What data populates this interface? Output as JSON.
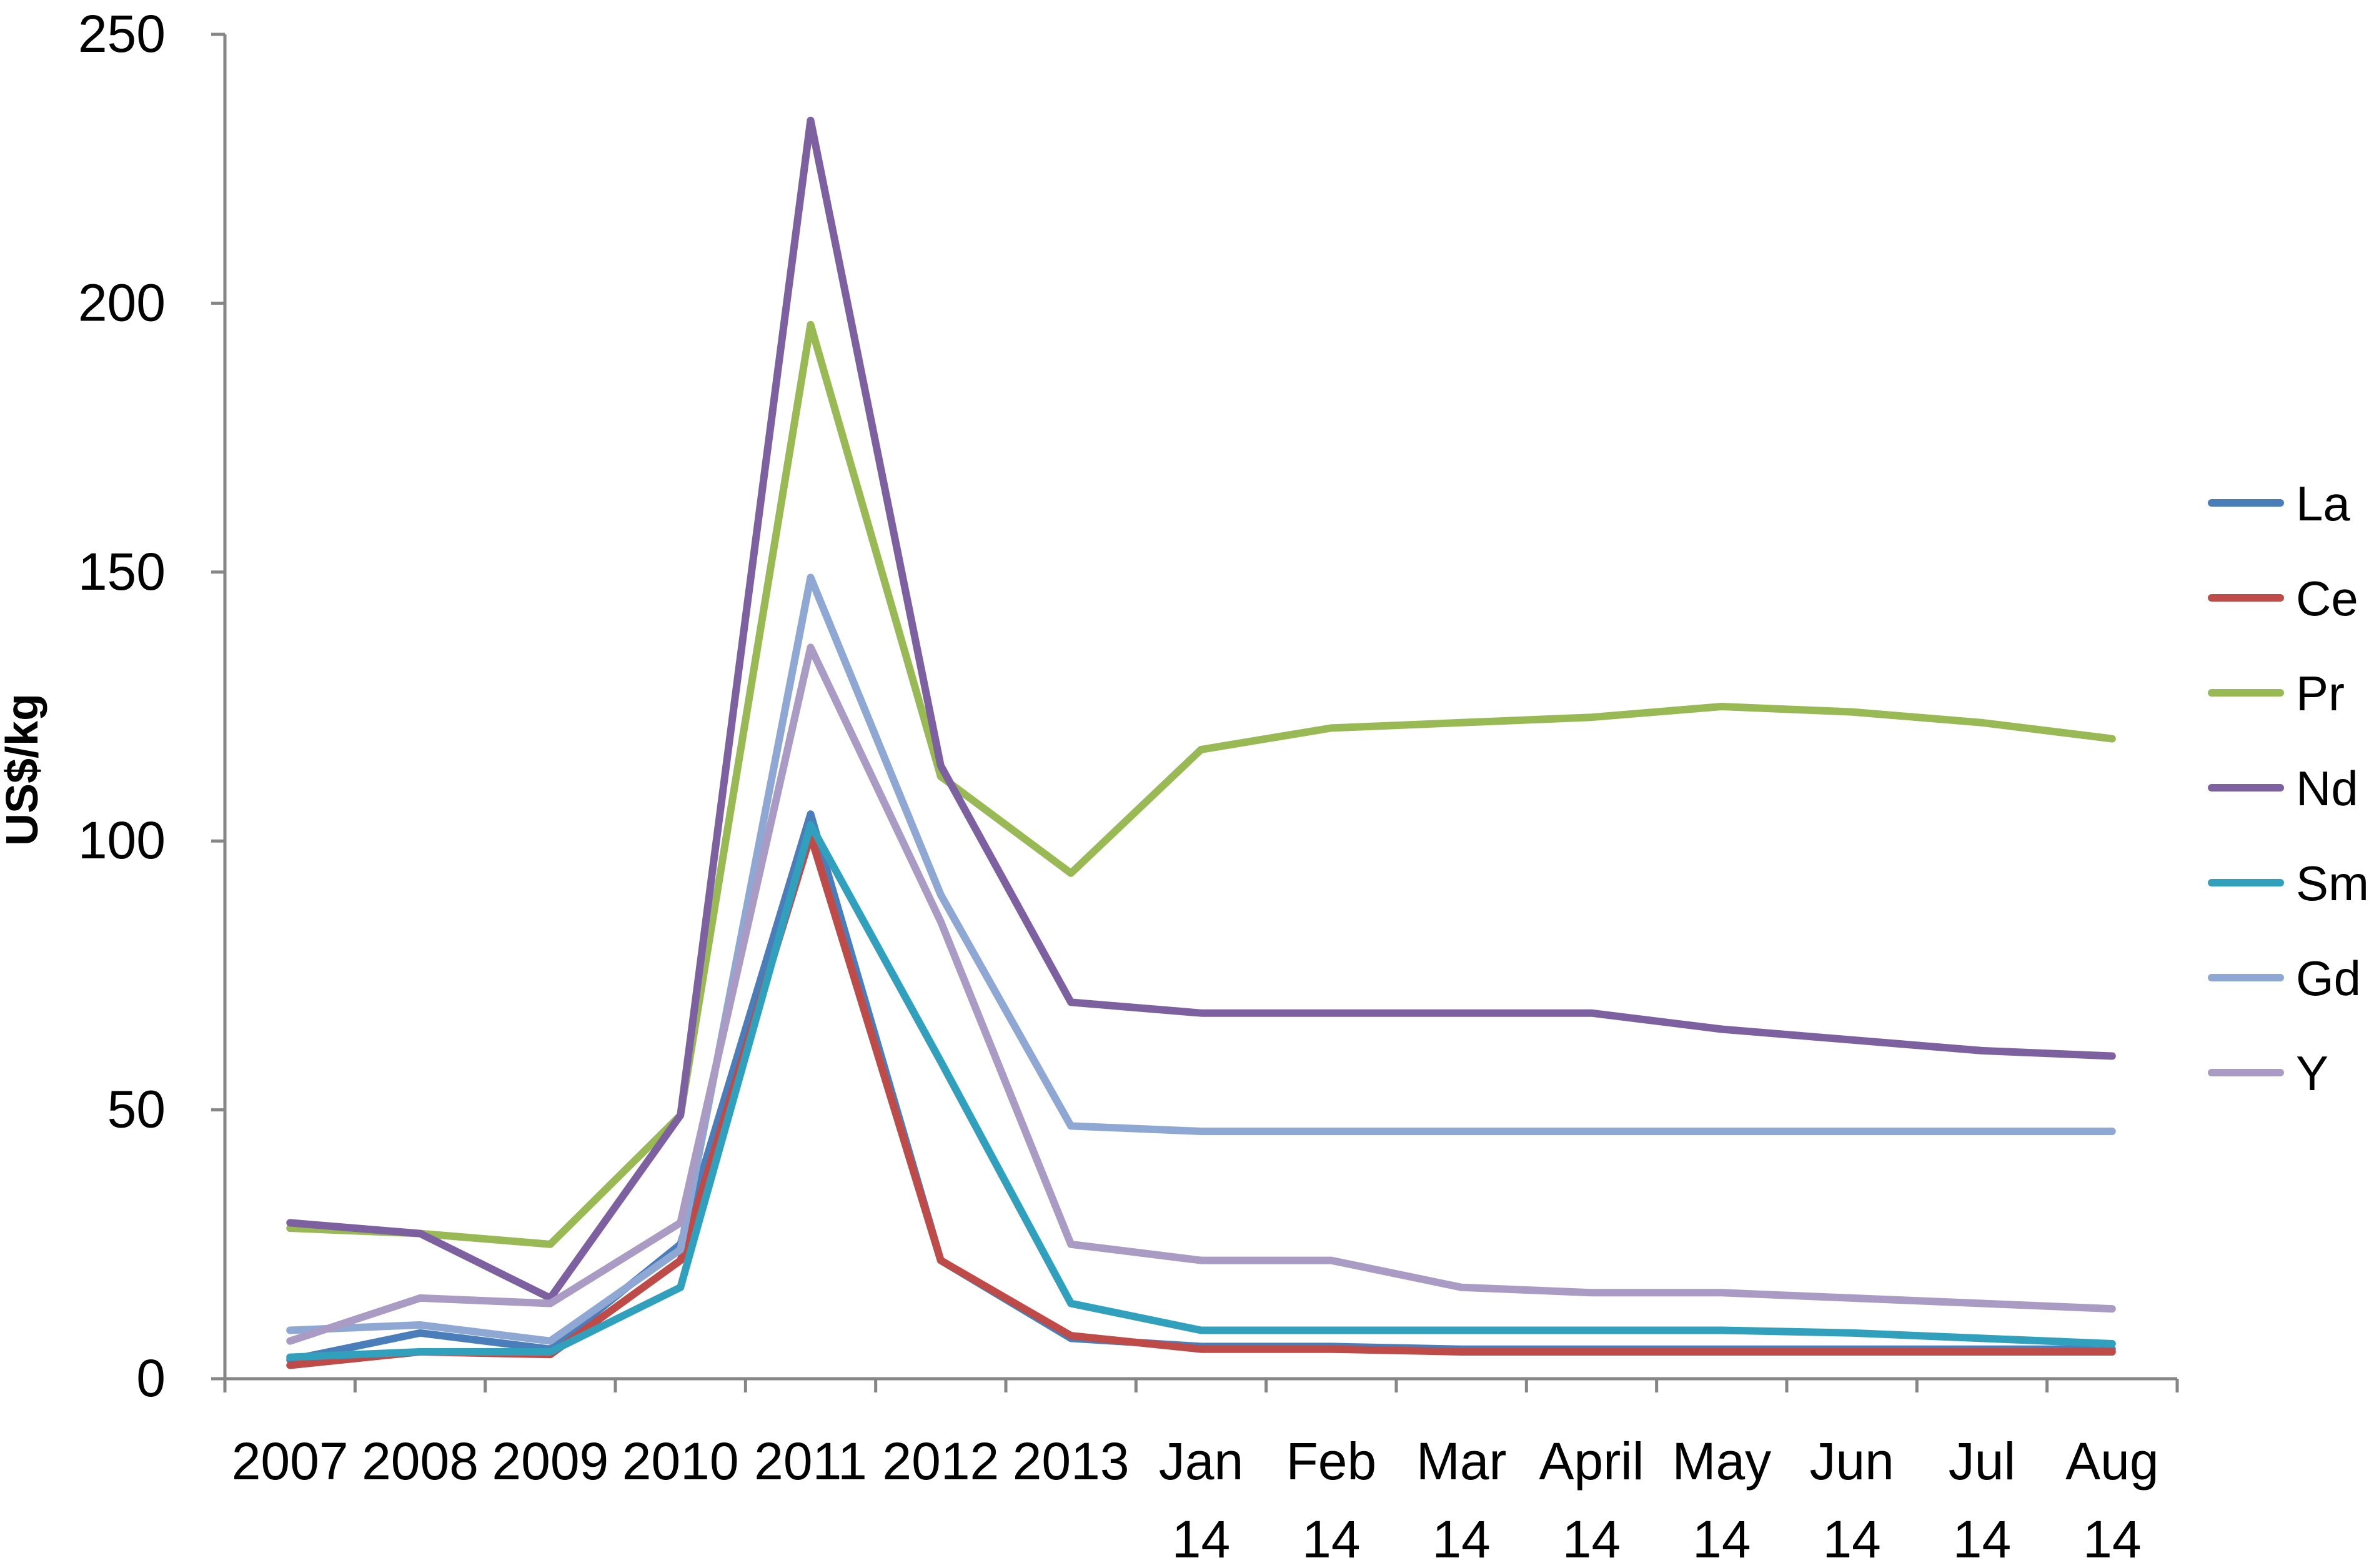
{
  "chart_data": {
    "type": "line",
    "title": "",
    "xlabel": "",
    "ylabel": "US$/kg",
    "ylim": [
      0,
      250
    ],
    "yticks": [
      0,
      50,
      100,
      150,
      200,
      250
    ],
    "categories": [
      [
        "2007"
      ],
      [
        "2008"
      ],
      [
        "2009"
      ],
      [
        "2010"
      ],
      [
        "2011"
      ],
      [
        "2012"
      ],
      [
        "2013"
      ],
      [
        "Jan",
        "14"
      ],
      [
        "Feb",
        "14"
      ],
      [
        "Mar",
        "14"
      ],
      [
        "April",
        "14"
      ],
      [
        "May",
        "14"
      ],
      [
        "Jun",
        "14"
      ],
      [
        "Jul",
        "14"
      ],
      [
        "Aug",
        "14"
      ]
    ],
    "grid": false,
    "legend_position": "right",
    "series": [
      {
        "name": "La",
        "color": "#4A7EBB",
        "values": [
          3.5,
          8.5,
          5.5,
          25,
          105,
          22,
          7.5,
          6,
          6,
          5.5,
          5.5,
          5.5,
          5.5,
          5.5,
          5.5
        ]
      },
      {
        "name": "Ce",
        "color": "#BE4B48",
        "values": [
          2.5,
          5,
          4.5,
          22,
          101,
          22,
          8,
          5.5,
          5.5,
          5,
          5,
          5,
          5,
          5,
          5
        ]
      },
      {
        "name": "Pr",
        "color": "#98B954",
        "values": [
          28,
          27,
          25,
          49,
          196,
          112,
          94,
          117,
          121,
          122,
          123,
          125,
          124,
          122,
          119
        ]
      },
      {
        "name": "Nd",
        "color": "#7D60A0",
        "values": [
          29,
          27,
          15,
          49,
          234,
          114,
          70,
          68,
          68,
          68,
          68,
          65,
          63,
          61,
          60
        ]
      },
      {
        "name": "Sm",
        "color": "#31A0BD",
        "values": [
          4,
          5,
          5,
          17,
          103,
          59,
          14,
          9,
          9,
          9,
          9,
          9,
          8.5,
          7.5,
          6.5
        ]
      },
      {
        "name": "Gd",
        "color": "#8EA8D3",
        "values": [
          9,
          10,
          7,
          24,
          149,
          90,
          47,
          46,
          46,
          46,
          46,
          46,
          46,
          46,
          46
        ]
      },
      {
        "name": "Y",
        "color": "#A99BC3",
        "values": [
          7,
          15,
          14,
          29,
          136,
          85,
          25,
          22,
          22,
          17,
          16,
          16,
          15,
          14,
          13
        ]
      }
    ]
  }
}
